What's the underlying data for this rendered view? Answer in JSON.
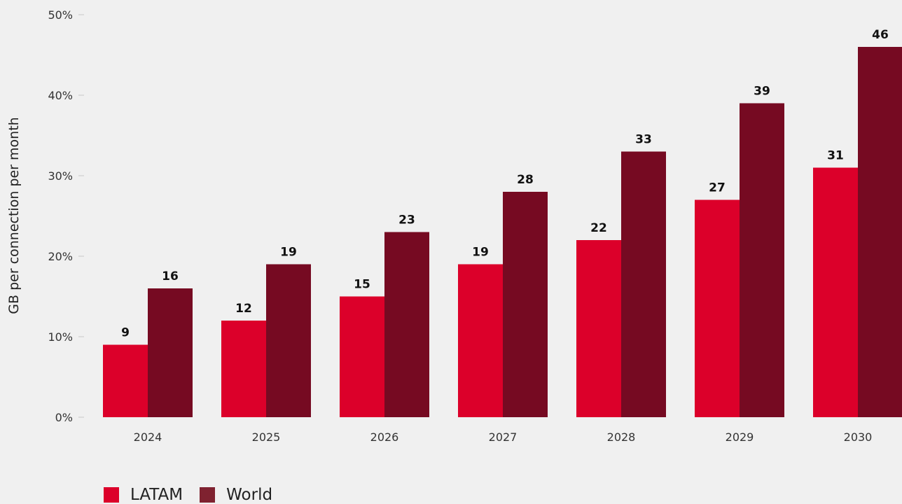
{
  "chart_data": {
    "type": "bar",
    "categories": [
      "2024",
      "2025",
      "2026",
      "2027",
      "2028",
      "2029",
      "2030"
    ],
    "series": [
      {
        "name": "LATAM",
        "values": [
          9,
          12,
          15,
          19,
          22,
          27,
          31
        ],
        "color": "#dc002a"
      },
      {
        "name": "World",
        "values": [
          16,
          19,
          23,
          28,
          33,
          39,
          46
        ],
        "color": "#760a22"
      }
    ],
    "y_ticks": [
      "0%",
      "10%",
      "20%",
      "30%",
      "40%",
      "50%"
    ],
    "ylim": [
      0,
      50
    ],
    "ylabel": "GB per connection per month",
    "xlabel": "",
    "legend_position": "bottom-left",
    "grid": false,
    "legend_world_swatch_color": "#7f2230"
  }
}
